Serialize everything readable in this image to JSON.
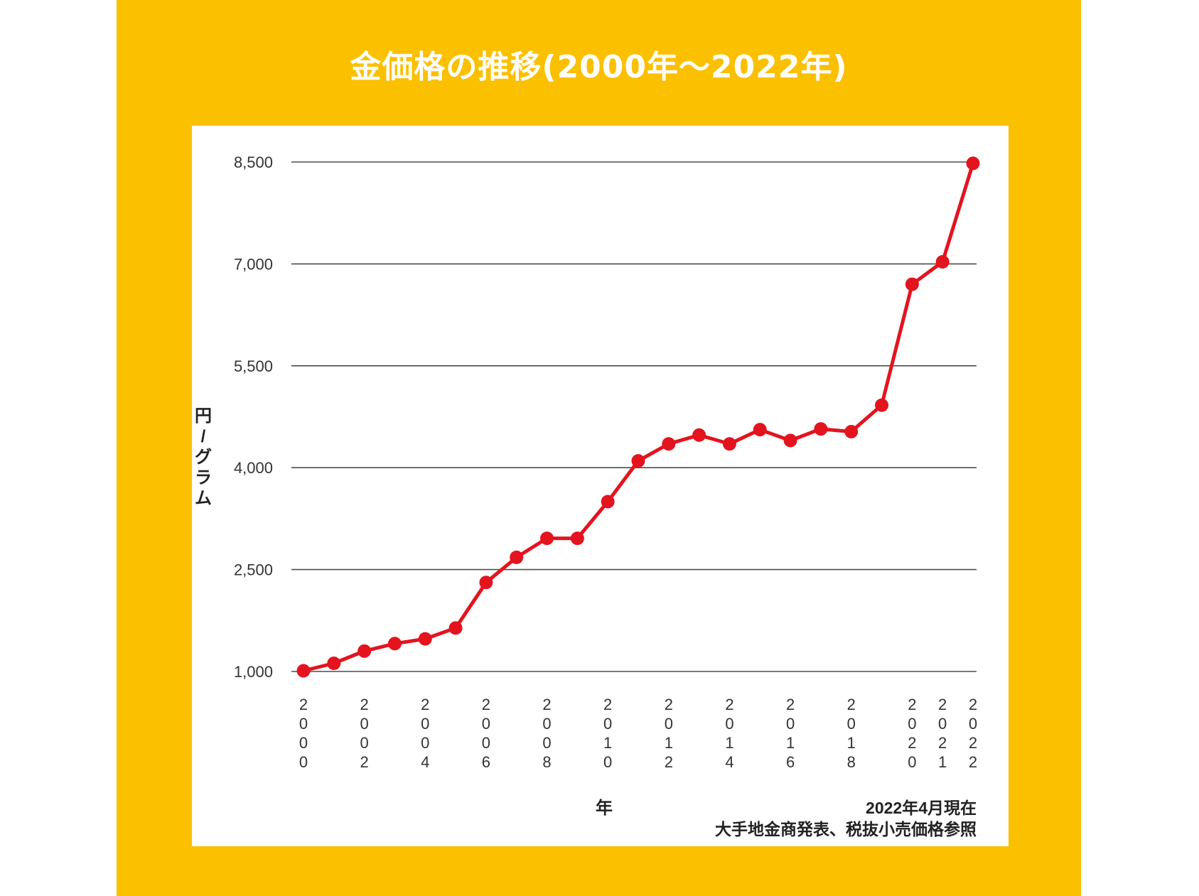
{
  "title": "金価格の推移(2000年〜2022年)",
  "colors": {
    "background_frame": "#FBC000",
    "panel": "#FFFFFF",
    "series_line": "#E3141E",
    "grid": "#4D4D4D",
    "title_text": "#FFFFFF"
  },
  "chart_data": {
    "type": "line",
    "title": "金価格の推移(2000年〜2022年)",
    "xlabel": "年",
    "ylabel": "円/グラム",
    "ylim": [
      1000,
      8500
    ],
    "yticks": [
      "1,000",
      "2,500",
      "4,000",
      "5,500",
      "7,000",
      "8,500"
    ],
    "ytick_values": [
      1000,
      2500,
      4000,
      5500,
      7000,
      8500
    ],
    "x": [
      2000,
      2001,
      2002,
      2003,
      2004,
      2005,
      2006,
      2007,
      2008,
      2009,
      2010,
      2011,
      2012,
      2013,
      2014,
      2015,
      2016,
      2017,
      2018,
      2019,
      2020,
      2021,
      2022
    ],
    "xticks": [
      "2000",
      "2002",
      "2004",
      "2006",
      "2008",
      "2010",
      "2012",
      "2014",
      "2016",
      "2018",
      "2020",
      "2021",
      "2022"
    ],
    "series": [
      {
        "values": [
          1010,
          1120,
          1300,
          1410,
          1480,
          1640,
          2310,
          2680,
          2960,
          2960,
          3500,
          4100,
          4350,
          4480,
          4350,
          4560,
          4400,
          4570,
          4530,
          4920,
          6700,
          7030,
          8480
        ]
      }
    ],
    "grid": true,
    "notes": [
      "2022年4月現在",
      "大手地金商発表、税抜小売価格参照"
    ]
  }
}
